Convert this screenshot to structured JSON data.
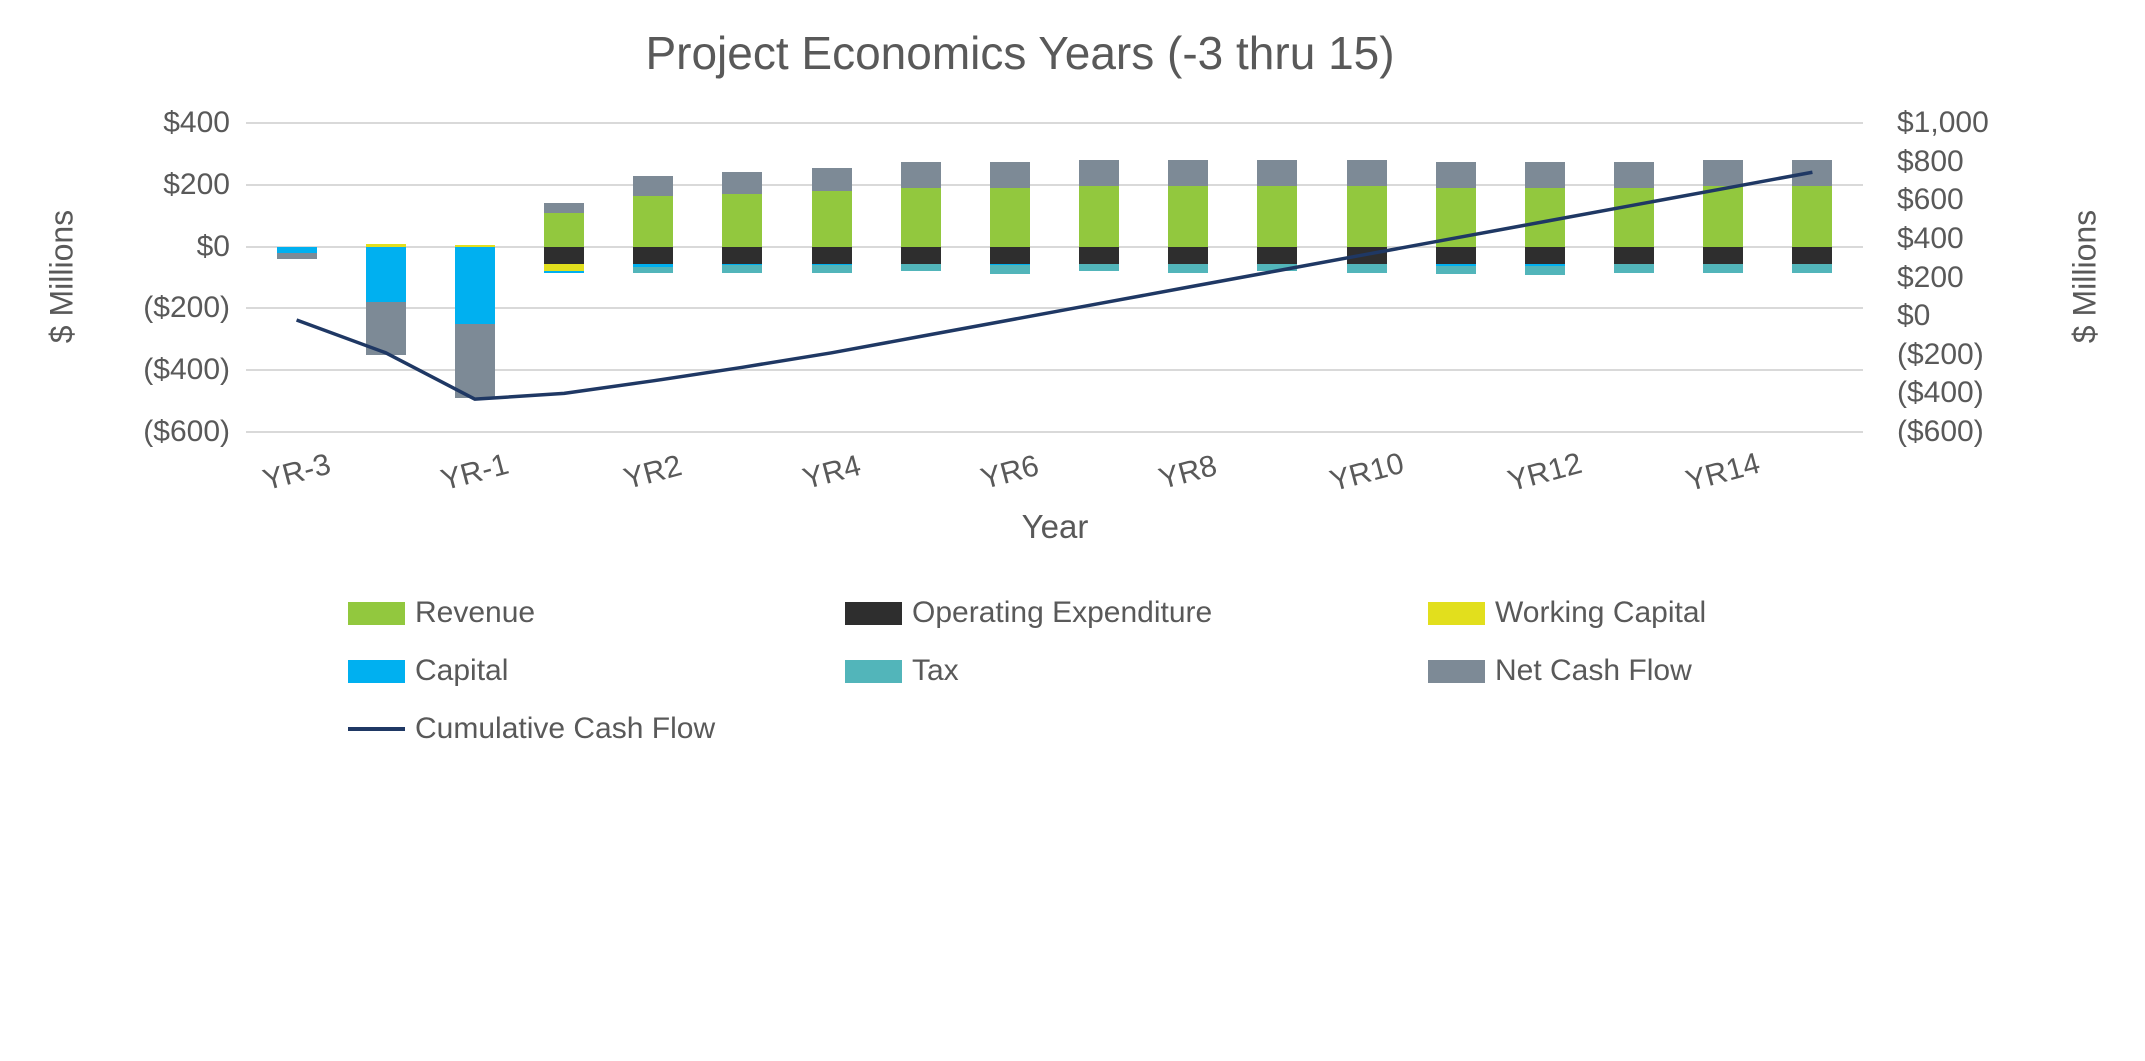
{
  "chart_data": {
    "type": "bar",
    "subtype": "stacked-bar-with-line",
    "title": "Project Economics Years (-3 thru 15)",
    "categories": [
      "YR-3",
      "YR-2",
      "YR-1",
      "YR1",
      "YR2",
      "YR3",
      "YR4",
      "YR5",
      "YR6",
      "YR7",
      "YR8",
      "YR9",
      "YR10",
      "YR11",
      "YR12",
      "YR13",
      "YR14",
      "YR15"
    ],
    "x_tick_labels_visible": [
      "YR-3",
      "YR-1",
      "YR2",
      "YR4",
      "YR6",
      "YR8",
      "YR10",
      "YR12",
      "YR14"
    ],
    "axes": {
      "x": {
        "title": "Year"
      },
      "left": {
        "title": "$ Millions",
        "min": -600,
        "max": 400,
        "step": 200,
        "ticks": [
          {
            "label": "$400",
            "value": 400
          },
          {
            "label": "$200",
            "value": 200
          },
          {
            "label": "$0",
            "value": 0
          },
          {
            "label": "($200)",
            "value": -200
          },
          {
            "label": "($400)",
            "value": -400
          },
          {
            "label": "($600)",
            "value": -600
          }
        ]
      },
      "right": {
        "title": "$ Millions",
        "min": -600,
        "max": 1000,
        "step": 200,
        "ticks": [
          {
            "label": "$1,000",
            "value": 1000
          },
          {
            "label": "$800",
            "value": 800
          },
          {
            "label": "$600",
            "value": 600
          },
          {
            "label": "$400",
            "value": 400
          },
          {
            "label": "$200",
            "value": 200
          },
          {
            "label": "$0",
            "value": 0
          },
          {
            "label": "($200)",
            "value": -200
          },
          {
            "label": "($400)",
            "value": -400
          },
          {
            "label": "($600)",
            "value": -600
          }
        ]
      }
    },
    "series": [
      {
        "name": "Revenue",
        "color": "#92c83e",
        "axis": "left",
        "values": [
          0,
          0,
          0,
          110,
          165,
          170,
          180,
          190,
          190,
          195,
          195,
          195,
          195,
          190,
          190,
          190,
          195,
          195
        ]
      },
      {
        "name": "Operating Expenditure",
        "color": "#2e2e2e",
        "axis": "left",
        "values": [
          0,
          0,
          0,
          -55,
          -55,
          -55,
          -55,
          -55,
          -55,
          -55,
          -55,
          -55,
          -55,
          -55,
          -55,
          -55,
          -55,
          -55
        ]
      },
      {
        "name": "Working Capital",
        "color": "#e2df1d",
        "axis": "left",
        "values": [
          0,
          10,
          5,
          -25,
          0,
          0,
          0,
          0,
          0,
          0,
          0,
          0,
          0,
          0,
          0,
          0,
          0,
          0
        ]
      },
      {
        "name": "Capital",
        "color": "#00b0f0",
        "axis": "left",
        "values": [
          -20,
          -180,
          -250,
          -5,
          -10,
          -5,
          -5,
          0,
          -5,
          0,
          0,
          0,
          0,
          -8,
          -8,
          0,
          0,
          0
        ]
      },
      {
        "name": "Tax",
        "color": "#52b5ba",
        "axis": "left",
        "values": [
          0,
          0,
          0,
          0,
          -20,
          -25,
          -25,
          -25,
          -30,
          -25,
          -30,
          -25,
          -30,
          -25,
          -30,
          -30,
          -30,
          -30
        ]
      },
      {
        "name": "Net Cash Flow",
        "color": "#7d8a96",
        "axis": "left",
        "values": [
          -20,
          -170,
          -240,
          30,
          65,
          70,
          75,
          85,
          85,
          85,
          85,
          85,
          85,
          85,
          85,
          85,
          85,
          85
        ]
      }
    ],
    "line_series": {
      "name": "Cumulative Cash Flow",
      "color": "#1f3864",
      "axis": "right",
      "values": [
        -20,
        -190,
        -430,
        -400,
        -335,
        -265,
        -190,
        -105,
        -20,
        65,
        150,
        235,
        320,
        405,
        490,
        575,
        660,
        745
      ]
    },
    "layout": {
      "grid": "horizontal-on",
      "gridline_color": "#d9d9d9",
      "legend_position": "bottom",
      "text_color": "#595959",
      "background": "#ffffff"
    },
    "legend": {
      "items": [
        {
          "label": "Revenue",
          "color": "#92c83e",
          "type": "bar"
        },
        {
          "label": "Operating Expenditure",
          "color": "#2e2e2e",
          "type": "bar"
        },
        {
          "label": "Working Capital",
          "color": "#e2df1d",
          "type": "bar"
        },
        {
          "label": "Capital",
          "color": "#00b0f0",
          "type": "bar"
        },
        {
          "label": "Tax",
          "color": "#52b5ba",
          "type": "bar"
        },
        {
          "label": "Net Cash Flow",
          "color": "#7d8a96",
          "type": "bar"
        },
        {
          "label": "Cumulative Cash Flow",
          "color": "#1f3864",
          "type": "line"
        }
      ]
    }
  }
}
